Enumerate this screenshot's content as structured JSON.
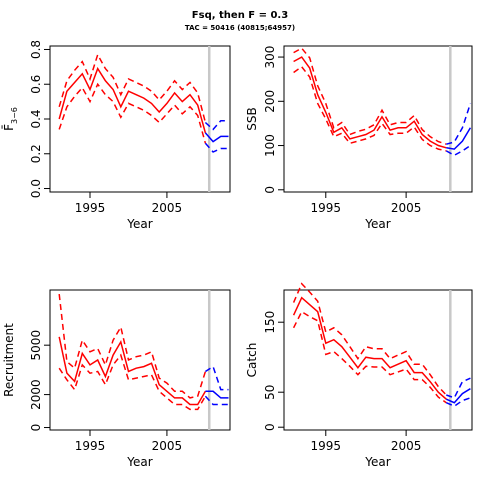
{
  "figure": {
    "title": "Fsq, then F = 0.3",
    "subtitle": "TAC = 50416 (40815;64957)"
  },
  "colors": {
    "historic": "#ff0000",
    "projection": "#0000ff",
    "marker": "#c8c8c8"
  },
  "chart_data": [
    {
      "type": "line",
      "id": "fbar",
      "xlabel": "Year",
      "ylabel": "F̄",
      "ylabel_sub": "3−6",
      "xlim": [
        1989.8,
        2013.2
      ],
      "ylim": [
        -0.02,
        0.82
      ],
      "xticks": [
        1995,
        2005
      ],
      "yticks": [
        0,
        0.2,
        0.4,
        0.6,
        0.8
      ],
      "ytick_labels": [
        "0.0",
        "0.2",
        "0.4",
        "0.6",
        "0.8"
      ],
      "grid": false,
      "vline": 2010.5,
      "historic": {
        "years": [
          1991,
          1992,
          1993,
          1994,
          1995,
          1996,
          1997,
          1998,
          1999,
          2000,
          2001,
          2002,
          2003,
          2004,
          2005,
          2006,
          2007,
          2008,
          2009,
          2010
        ],
        "median": [
          0.4,
          0.56,
          0.61,
          0.66,
          0.57,
          0.69,
          0.62,
          0.57,
          0.47,
          0.56,
          0.54,
          0.52,
          0.49,
          0.44,
          0.49,
          0.55,
          0.5,
          0.54,
          0.48,
          0.32
        ],
        "lower": [
          0.34,
          0.47,
          0.53,
          0.58,
          0.5,
          0.6,
          0.54,
          0.5,
          0.41,
          0.49,
          0.47,
          0.45,
          0.42,
          0.38,
          0.43,
          0.48,
          0.43,
          0.47,
          0.42,
          0.26
        ],
        "upper": [
          0.47,
          0.62,
          0.68,
          0.73,
          0.63,
          0.77,
          0.69,
          0.64,
          0.54,
          0.63,
          0.61,
          0.59,
          0.56,
          0.51,
          0.56,
          0.62,
          0.57,
          0.61,
          0.55,
          0.38
        ]
      },
      "projection": {
        "years": [
          2010,
          2011,
          2012,
          2013
        ],
        "median": [
          0.32,
          0.27,
          0.3,
          0.3
        ],
        "lower": [
          0.26,
          0.21,
          0.23,
          0.23
        ],
        "upper": [
          0.38,
          0.34,
          0.39,
          0.39
        ]
      }
    },
    {
      "type": "line",
      "id": "ssb",
      "xlabel": "Year",
      "ylabel": "SSB",
      "xlim": [
        1989.8,
        2013.2
      ],
      "ylim": [
        -5,
        325
      ],
      "xticks": [
        1995,
        2005
      ],
      "yticks": [
        0,
        100,
        200,
        300
      ],
      "ytick_labels": [
        "0",
        "100",
        "200",
        "300"
      ],
      "grid": false,
      "vline": 2010.5,
      "historic": {
        "years": [
          1991,
          1992,
          1993,
          1994,
          1995,
          1996,
          1997,
          1998,
          1999,
          2000,
          2001,
          2002,
          2003,
          2004,
          2005,
          2006,
          2007,
          2008,
          2009,
          2010
        ],
        "median": [
          290,
          300,
          275,
          215,
          175,
          130,
          140,
          115,
          120,
          125,
          135,
          165,
          135,
          140,
          140,
          155,
          125,
          110,
          100,
          95
        ],
        "lower": [
          265,
          278,
          255,
          195,
          160,
          120,
          128,
          105,
          110,
          115,
          123,
          150,
          125,
          128,
          128,
          142,
          114,
          100,
          92,
          88
        ],
        "upper": [
          310,
          320,
          298,
          235,
          195,
          140,
          152,
          125,
          132,
          137,
          147,
          180,
          147,
          152,
          152,
          168,
          136,
          120,
          109,
          103
        ]
      },
      "projection": {
        "years": [
          2010,
          2011,
          2012,
          2013
        ],
        "median": [
          95,
          92,
          110,
          140
        ],
        "lower": [
          88,
          78,
          88,
          100
        ],
        "upper": [
          103,
          108,
          140,
          195
        ]
      }
    },
    {
      "type": "line",
      "id": "recruitment",
      "xlabel": "Year",
      "ylabel": "Recruitment",
      "xlim": [
        1989.8,
        2013.2
      ],
      "ylim": [
        -150,
        8350
      ],
      "xticks": [
        1995,
        2005
      ],
      "yticks": [
        0,
        2000,
        5000
      ],
      "ytick_labels": [
        "0",
        "2000",
        "5000"
      ],
      "grid": false,
      "vline": 2010.5,
      "historic": {
        "years": [
          1991,
          1992,
          1993,
          1994,
          1995,
          1996,
          1997,
          1998,
          1999,
          2000,
          2001,
          2002,
          2003,
          2004,
          2005,
          2006,
          2007,
          2008,
          2009,
          2010
        ],
        "median": [
          5500,
          3300,
          2800,
          4500,
          3800,
          4100,
          3100,
          4400,
          5200,
          3400,
          3600,
          3700,
          3900,
          2600,
          2200,
          1800,
          1800,
          1400,
          1400,
          2200
        ],
        "lower": [
          3600,
          2900,
          2300,
          3800,
          3300,
          3400,
          2600,
          3800,
          4400,
          2900,
          3000,
          3100,
          3200,
          2200,
          1800,
          1400,
          1400,
          1100,
          1100,
          1900
        ],
        "upper": [
          8100,
          4000,
          3600,
          5300,
          4600,
          4800,
          3800,
          5300,
          6100,
          4100,
          4300,
          4400,
          4600,
          3000,
          2700,
          2200,
          2200,
          1800,
          1900,
          3400
        ]
      },
      "projection": {
        "years": [
          2010,
          2011,
          2012,
          2013
        ],
        "median": [
          2200,
          2200,
          1800,
          1800
        ],
        "lower": [
          1900,
          1400,
          1400,
          1400
        ],
        "upper": [
          3400,
          3700,
          2300,
          2300
        ]
      }
    },
    {
      "type": "line",
      "id": "catch",
      "xlabel": "Year",
      "ylabel": "Catch",
      "xlim": [
        1989.8,
        2013.2
      ],
      "ylim": [
        -4,
        196
      ],
      "xticks": [
        1995,
        2005
      ],
      "yticks": [
        0,
        50,
        150
      ],
      "ytick_labels": [
        "0",
        "50",
        "150"
      ],
      "grid": false,
      "vline": 2010.5,
      "historic": {
        "years": [
          1991,
          1992,
          1993,
          1994,
          1995,
          1996,
          1997,
          1998,
          1999,
          2000,
          2001,
          2002,
          2003,
          2004,
          2005,
          2006,
          2007,
          2008,
          2009,
          2010
        ],
        "median": [
          160,
          185,
          175,
          165,
          120,
          125,
          115,
          100,
          85,
          100,
          98,
          98,
          85,
          90,
          95,
          78,
          78,
          65,
          50,
          40
        ],
        "lower": [
          142,
          165,
          158,
          152,
          104,
          108,
          98,
          87,
          75,
          87,
          86,
          86,
          75,
          79,
          83,
          68,
          68,
          57,
          43,
          35
        ],
        "upper": [
          178,
          205,
          193,
          180,
          136,
          142,
          132,
          115,
          98,
          115,
          112,
          112,
          98,
          103,
          108,
          90,
          90,
          75,
          58,
          46
        ]
      },
      "projection": {
        "years": [
          2010,
          2011,
          2012,
          2013
        ],
        "median": [
          40,
          35,
          48,
          55
        ],
        "lower": [
          35,
          30,
          38,
          42
        ],
        "upper": [
          46,
          42,
          65,
          70
        ]
      }
    }
  ]
}
